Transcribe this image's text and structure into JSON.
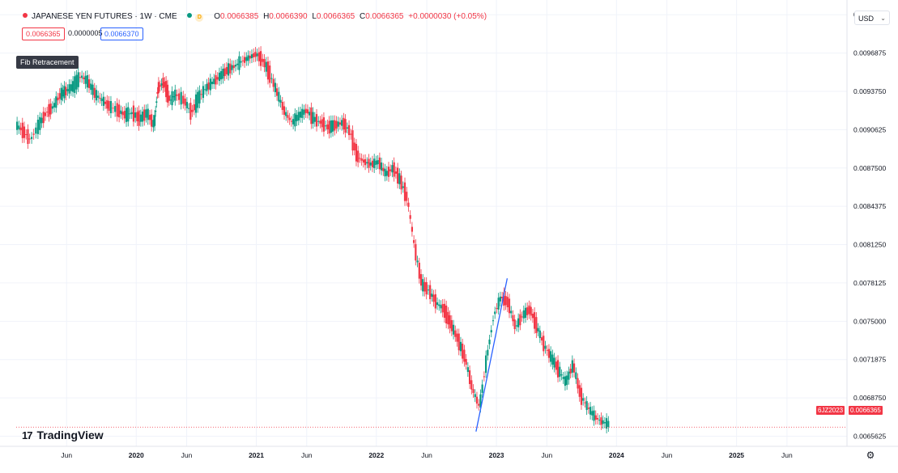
{
  "header": {
    "symbol": "JAPANESE YEN FUTURES · 1W · CME",
    "badge_d": "D",
    "o_label": "O",
    "o_value": "0.0066385",
    "h_label": "H",
    "h_value": "0.0066390",
    "l_label": "L",
    "l_value": "0.0066365",
    "c_label": "C",
    "c_value": "0.0066365",
    "change": "+0.0000030 (+0.05%)",
    "bid": "0.0066365",
    "spread": "0.0000005",
    "ask": "0.0066370"
  },
  "toolbar": {
    "fib_label": "Fib Retracement",
    "currency": "USD"
  },
  "brand": {
    "name": "TradingView",
    "mark": "17"
  },
  "price_tag": {
    "symbol": "6JZ2023",
    "value": "0.0066365"
  },
  "colors": {
    "up": "#089981",
    "down": "#f23645",
    "trendline": "#2962ff",
    "grid": "#f0f3fa"
  },
  "icons": {
    "settings": "gear-icon",
    "chevron": "chevron-down-icon"
  },
  "chart_data": {
    "type": "candlestick",
    "y_axis": {
      "ticks": [
        "0.0100000",
        "0.0096875",
        "0.0093750",
        "0.0090625",
        "0.0087500",
        "0.0084375",
        "0.0081250",
        "0.0078125",
        "0.0075000",
        "0.0071875",
        "0.0068750",
        "0.0065625"
      ],
      "range": [
        0.00648,
        0.01012
      ]
    },
    "x_axis": {
      "ticks": [
        "Jun",
        "2020",
        "Jun",
        "2021",
        "Jun",
        "2022",
        "Jun",
        "2023",
        "Jun",
        "2024",
        "Jun",
        "2025",
        "Jun"
      ],
      "tick_dates": [
        2019.42,
        2020.0,
        2020.42,
        2021.0,
        2021.42,
        2022.0,
        2022.42,
        2023.0,
        2023.42,
        2024.0,
        2024.42,
        2025.0,
        2025.42
      ],
      "range": [
        2019.0,
        2025.92
      ]
    },
    "grid": true,
    "trendline": {
      "from": [
        2022.83,
        0.0066
      ],
      "to": [
        2023.09,
        0.00785
      ]
    },
    "last_price_line": 0.0066365,
    "closes": [
      [
        2019.0,
        0.0091
      ],
      [
        2019.06,
        0.00905
      ],
      [
        2019.12,
        0.00898
      ],
      [
        2019.19,
        0.0091
      ],
      [
        2019.25,
        0.0092
      ],
      [
        2019.31,
        0.00925
      ],
      [
        2019.37,
        0.00935
      ],
      [
        2019.42,
        0.00938
      ],
      [
        2019.48,
        0.00942
      ],
      [
        2019.54,
        0.0095
      ],
      [
        2019.6,
        0.00945
      ],
      [
        2019.66,
        0.00935
      ],
      [
        2019.72,
        0.0093
      ],
      [
        2019.78,
        0.00925
      ],
      [
        2019.85,
        0.00922
      ],
      [
        2019.91,
        0.00918
      ],
      [
        2019.97,
        0.0092
      ],
      [
        2020.03,
        0.00915
      ],
      [
        2020.09,
        0.0092
      ],
      [
        2020.15,
        0.0091
      ],
      [
        2020.18,
        0.0094
      ],
      [
        2020.23,
        0.00945
      ],
      [
        2020.28,
        0.0093
      ],
      [
        2020.33,
        0.00935
      ],
      [
        2020.4,
        0.0093
      ],
      [
        2020.46,
        0.0092
      ],
      [
        2020.52,
        0.00932
      ],
      [
        2020.58,
        0.0094
      ],
      [
        2020.64,
        0.00945
      ],
      [
        2020.7,
        0.0095
      ],
      [
        2020.76,
        0.00955
      ],
      [
        2020.82,
        0.00958
      ],
      [
        2020.88,
        0.00962
      ],
      [
        2020.94,
        0.00965
      ],
      [
        2021.0,
        0.00968
      ],
      [
        2021.06,
        0.00962
      ],
      [
        2021.12,
        0.0095
      ],
      [
        2021.18,
        0.00935
      ],
      [
        2021.24,
        0.0092
      ],
      [
        2021.3,
        0.00912
      ],
      [
        2021.36,
        0.00918
      ],
      [
        2021.42,
        0.00922
      ],
      [
        2021.48,
        0.00915
      ],
      [
        2021.54,
        0.00912
      ],
      [
        2021.6,
        0.00908
      ],
      [
        2021.66,
        0.0091
      ],
      [
        2021.72,
        0.00912
      ],
      [
        2021.78,
        0.00905
      ],
      [
        2021.84,
        0.00885
      ],
      [
        2021.9,
        0.0088
      ],
      [
        2021.96,
        0.00878
      ],
      [
        2022.02,
        0.0088
      ],
      [
        2022.08,
        0.0087
      ],
      [
        2022.14,
        0.00875
      ],
      [
        2022.2,
        0.00865
      ],
      [
        2022.26,
        0.0085
      ],
      [
        2022.32,
        0.0081
      ],
      [
        2022.38,
        0.0078
      ],
      [
        2022.44,
        0.00775
      ],
      [
        2022.5,
        0.00765
      ],
      [
        2022.56,
        0.0076
      ],
      [
        2022.62,
        0.00748
      ],
      [
        2022.68,
        0.00735
      ],
      [
        2022.74,
        0.0072
      ],
      [
        2022.8,
        0.00695
      ],
      [
        2022.86,
        0.0068
      ],
      [
        2022.92,
        0.0072
      ],
      [
        2022.98,
        0.00755
      ],
      [
        2023.04,
        0.0077
      ],
      [
        2023.1,
        0.00765
      ],
      [
        2023.16,
        0.00745
      ],
      [
        2023.22,
        0.00755
      ],
      [
        2023.28,
        0.0076
      ],
      [
        2023.34,
        0.00745
      ],
      [
        2023.4,
        0.0073
      ],
      [
        2023.46,
        0.0072
      ],
      [
        2023.52,
        0.0071
      ],
      [
        2023.58,
        0.007
      ],
      [
        2023.64,
        0.00715
      ],
      [
        2023.7,
        0.0069
      ],
      [
        2023.76,
        0.0068
      ],
      [
        2023.82,
        0.00672
      ],
      [
        2023.88,
        0.00668
      ],
      [
        2023.94,
        0.00666
      ]
    ]
  }
}
